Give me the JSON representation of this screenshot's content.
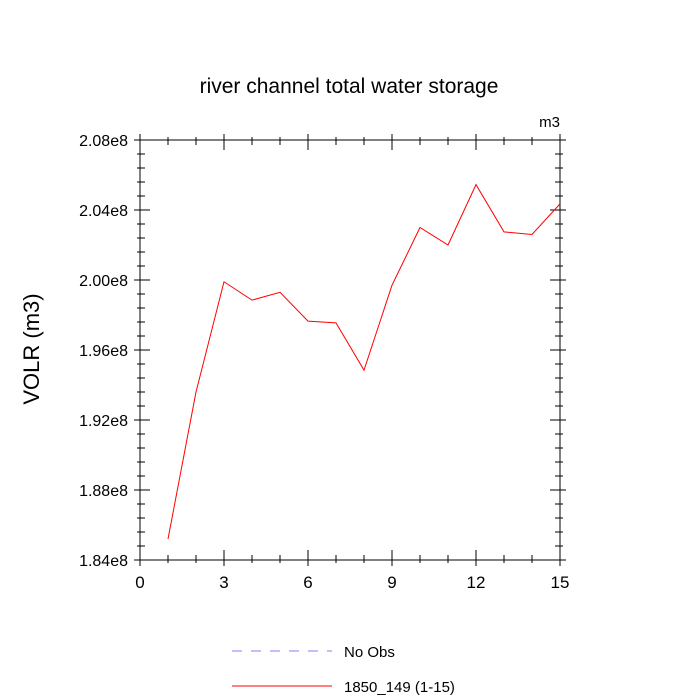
{
  "chart_data": {
    "type": "line",
    "title": "river channel total water storage",
    "units_label": "m3",
    "ylabel": "VOLR  (m3)",
    "xlabel": "",
    "xlim": [
      0,
      15
    ],
    "ylim": [
      184000000,
      208000000
    ],
    "x_ticks": [
      0,
      3,
      6,
      9,
      12,
      15
    ],
    "x_tick_labels": [
      "0",
      "3",
      "6",
      "9",
      "12",
      "15"
    ],
    "y_ticks": [
      184000000,
      188000000,
      192000000,
      196000000,
      200000000,
      204000000,
      208000000
    ],
    "y_tick_labels": [
      "1.84e8",
      "1.88e8",
      "1.92e8",
      "1.96e8",
      "2.00e8",
      "2.04e8",
      "2.08e8"
    ],
    "grid": false,
    "legend_position": "bottom-center",
    "series": [
      {
        "name": "1850_149 (1-15)",
        "color": "#ff0000",
        "dash": "solid",
        "x": [
          1,
          2,
          3,
          4,
          5,
          6,
          7,
          8,
          9,
          10,
          11,
          12,
          13,
          14,
          15
        ],
        "y": [
          185200000,
          193600000,
          199900000,
          198850000,
          199300000,
          197650000,
          197550000,
          194850000,
          199700000,
          203000000,
          202000000,
          205450000,
          202750000,
          202600000,
          204350000
        ]
      }
    ],
    "legend": [
      {
        "label": "No Obs",
        "color": "#8080ff",
        "dash": "dashed"
      },
      {
        "label": "1850_149 (1-15)",
        "color": "#ff0000",
        "dash": "solid"
      }
    ]
  }
}
